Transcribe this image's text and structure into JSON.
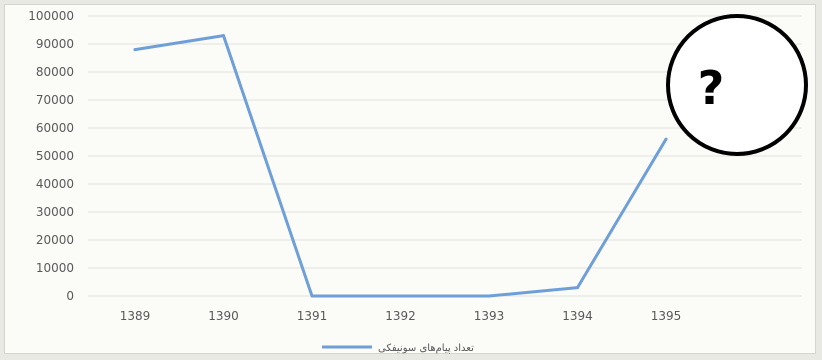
{
  "chart_data": {
    "type": "line",
    "title": "",
    "xlabel": "",
    "ylabel": "",
    "categories": [
      "1389",
      "1390",
      "1391",
      "1392",
      "1393",
      "1394",
      "1395"
    ],
    "series": [
      {
        "name": "تعداد پیام‌های سونیفکی",
        "values": [
          88000,
          93000,
          0,
          0,
          0,
          3000,
          56000
        ]
      }
    ],
    "yticks": [
      "0",
      "10000",
      "20000",
      "30000",
      "40000",
      "50000",
      "60000",
      "70000",
      "80000",
      "90000",
      "100000"
    ],
    "ylim": [
      0,
      100000
    ],
    "grid": true,
    "legend": "bottom-center",
    "line_color": "#6f9fd8",
    "annotation": {
      "text": "?",
      "shape": "circle"
    }
  }
}
